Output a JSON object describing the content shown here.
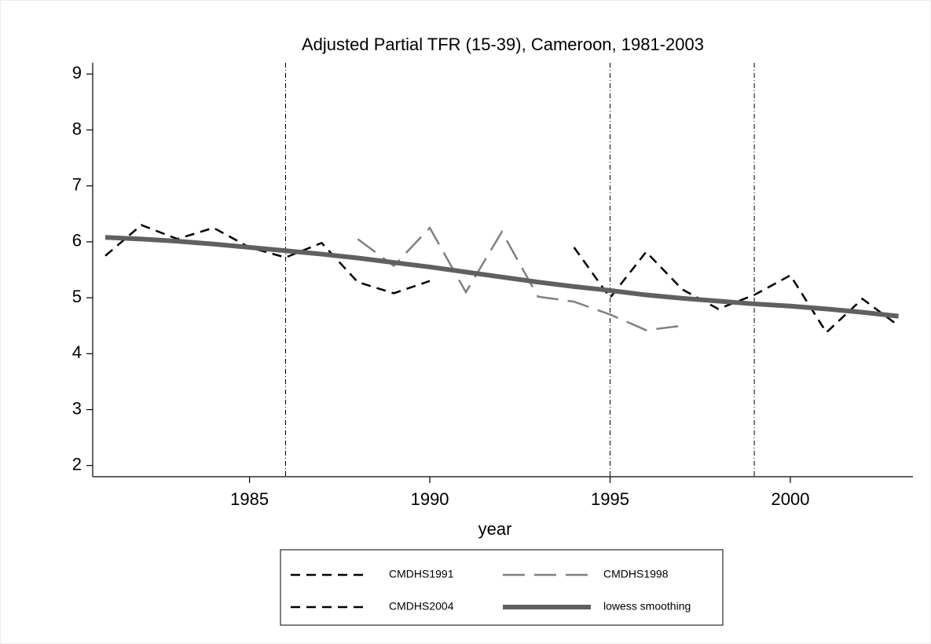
{
  "chart_data": {
    "type": "line",
    "title": "Adjusted Partial TFR (15-39), Cameroon, 1981-2003",
    "x_label": "year",
    "xlim": [
      1980.65,
      2003.4
    ],
    "xticks": [
      1985,
      1990,
      1995,
      2000
    ],
    "ylim": [
      1.8,
      9.2
    ],
    "yticks": [
      2,
      3,
      4,
      5,
      6,
      7,
      8,
      9
    ],
    "xlines": [
      1986,
      1995,
      1999
    ],
    "series": [
      {
        "name": "CMDHS1991",
        "color": "#000000",
        "dash": "12,8",
        "width": 2.5,
        "x": [
          1981,
          1982,
          1983,
          1984,
          1985,
          1986,
          1987,
          1988,
          1989,
          1990
        ],
        "values": [
          5.75,
          6.3,
          6.05,
          6.25,
          5.9,
          5.72,
          5.98,
          5.28,
          5.08,
          5.3
        ]
      },
      {
        "name": "CMDHS1998",
        "color": "#808080",
        "dash": "28,12",
        "width": 2.5,
        "x": [
          1988,
          1989,
          1990,
          1991,
          1992,
          1993,
          1994,
          1995,
          1996,
          1997
        ],
        "values": [
          6.05,
          5.57,
          6.25,
          5.1,
          6.18,
          5.02,
          4.93,
          4.7,
          4.42,
          4.5
        ]
      },
      {
        "name": "CMDHS2004",
        "color": "#000000",
        "dash": "12,8",
        "width": 2.5,
        "x": [
          1994,
          1995,
          1996,
          1997,
          1998,
          1999,
          2000,
          2001,
          2002,
          2003
        ],
        "values": [
          5.9,
          5.0,
          5.82,
          5.15,
          4.8,
          5.05,
          5.4,
          4.38,
          4.98,
          4.5
        ]
      },
      {
        "name": "lowess smoothing",
        "color": "#606060",
        "dash": "none",
        "width": 6,
        "x": [
          1981,
          1982,
          1983,
          1984,
          1985,
          1986,
          1987,
          1988,
          1989,
          1990,
          1991,
          1992,
          1993,
          1994,
          1995,
          1996,
          1997,
          1998,
          1999,
          2000,
          2001,
          2002,
          2003
        ],
        "values": [
          6.08,
          6.05,
          6.01,
          5.96,
          5.9,
          5.84,
          5.78,
          5.71,
          5.63,
          5.55,
          5.46,
          5.37,
          5.28,
          5.2,
          5.13,
          5.05,
          4.99,
          4.94,
          4.89,
          4.85,
          4.8,
          4.74,
          4.67
        ]
      }
    ]
  }
}
